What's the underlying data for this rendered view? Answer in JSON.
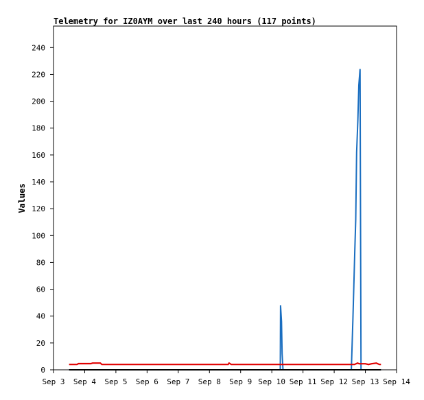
{
  "chart_data": {
    "type": "line",
    "title": "Telemetry for IZ0AYM over last 240 hours (117 points)",
    "xlabel": "",
    "ylabel": "Values",
    "x_ticks": [
      "Sep 3",
      "Sep 4",
      "Sep 5",
      "Sep 6",
      "Sep 7",
      "Sep 8",
      "Sep 9",
      "Sep 10",
      "Sep 11",
      "Sep 12",
      "Sep 13",
      "Sep 14"
    ],
    "y_ticks": [
      0,
      20,
      40,
      60,
      80,
      100,
      120,
      140,
      160,
      180,
      200,
      220,
      240
    ],
    "xlim": [
      "Sep 3",
      "Sep 14"
    ],
    "ylim": [
      0,
      256
    ],
    "grid": false,
    "legend": "none",
    "colors": {
      "series_1": "#1a6ec0",
      "series_2": "#e00000",
      "series_3": "#000000",
      "axes": "#000000",
      "background": "#ffffff"
    },
    "series": [
      {
        "points": [
          [
            3.5,
            0
          ],
          [
            10.27,
            0
          ],
          [
            10.28,
            48
          ],
          [
            10.31,
            36
          ],
          [
            10.33,
            12
          ],
          [
            10.36,
            0
          ],
          [
            12.55,
            0
          ],
          [
            12.6,
            38
          ],
          [
            12.63,
            62
          ],
          [
            12.66,
            88
          ],
          [
            12.69,
            112
          ],
          [
            12.72,
            162
          ],
          [
            12.76,
            186
          ],
          [
            12.79,
            212
          ],
          [
            12.83,
            224
          ],
          [
            12.86,
            0
          ],
          [
            13.5,
            0
          ]
        ]
      },
      {
        "points": [
          [
            3.5,
            4
          ],
          [
            3.75,
            4
          ],
          [
            3.8,
            4.6
          ],
          [
            4.2,
            4.6
          ],
          [
            4.25,
            5
          ],
          [
            4.5,
            5
          ],
          [
            4.55,
            4
          ],
          [
            8.6,
            4
          ],
          [
            8.63,
            5
          ],
          [
            8.7,
            4
          ],
          [
            12.65,
            4
          ],
          [
            12.75,
            5
          ],
          [
            12.8,
            4.5
          ],
          [
            13.0,
            4.5
          ],
          [
            13.1,
            4
          ],
          [
            13.2,
            4.5
          ],
          [
            13.35,
            5
          ],
          [
            13.45,
            4
          ],
          [
            13.5,
            4
          ]
        ]
      },
      {
        "points": [
          [
            3.5,
            0
          ],
          [
            13.5,
            0
          ]
        ]
      }
    ]
  }
}
